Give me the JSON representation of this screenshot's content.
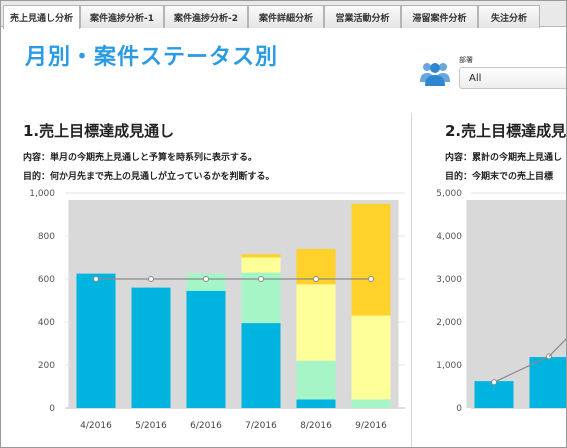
{
  "tabs": [
    {
      "label": "売上見通し分析",
      "active": true
    },
    {
      "label": "案件進捗分析-1",
      "active": false
    },
    {
      "label": "案件進捗分析-2",
      "active": false
    },
    {
      "label": "案件詳細分析",
      "active": false
    },
    {
      "label": "営業活動分析",
      "active": false
    },
    {
      "label": "滞留案件分析",
      "active": false
    },
    {
      "label": "失注分析",
      "active": false
    }
  ],
  "page": {
    "title": "月別・案件ステータス別"
  },
  "filter": {
    "label": "部署",
    "value": "All",
    "icon": "people-icon"
  },
  "panels": [
    {
      "title": "1.売上目標達成見通し",
      "content": "内容：単月の今期売上見通しと予算を時系列に表示する。",
      "purpose": "目的：何か月先まで売上の見通しが立っているかを判断する。"
    },
    {
      "title": "2.売上目標達成見通し",
      "content": "内容：累計の今期売上見通し",
      "purpose": "目的：今期末での売上目標"
    }
  ],
  "colors": {
    "tab_bg": "#e9e9e9",
    "title_blue": "#2b9be3",
    "budget_band": "#d9d9d9",
    "stage1": "#00b4e0",
    "stage2": "#a6f5c6",
    "stage3": "#ffff99",
    "stage4": "#ffd12a",
    "budget_line": "#8a8a8a"
  },
  "chart_data": [
    {
      "type": "bar",
      "stacked": true,
      "categories": [
        "4/2016",
        "5/2016",
        "6/2016",
        "7/2016",
        "8/2016",
        "9/2016"
      ],
      "ylim": [
        0,
        1000
      ],
      "yticks": [
        "0",
        "200",
        "400",
        "600",
        "800",
        "1,000"
      ],
      "grid": true,
      "budget": [
        600,
        600,
        600,
        600,
        600,
        600
      ],
      "series": [
        {
          "color": "#00b4e0",
          "values": [
            625,
            560,
            545,
            395,
            40,
            0
          ]
        },
        {
          "color": "#a6f5c6",
          "values": [
            0,
            0,
            80,
            235,
            180,
            40
          ]
        },
        {
          "color": "#ffff99",
          "values": [
            0,
            0,
            0,
            70,
            355,
            390
          ]
        },
        {
          "color": "#ffd12a",
          "values": [
            0,
            0,
            0,
            15,
            165,
            520
          ]
        }
      ]
    },
    {
      "type": "bar",
      "stacked": true,
      "categories": [
        "",
        ""
      ],
      "ylim": [
        0,
        5000
      ],
      "yticks": [
        "0",
        "1,000",
        "2,000",
        "3,000",
        "4,000",
        "5,000"
      ],
      "grid": true,
      "budget": [
        600,
        1200
      ],
      "series": [
        {
          "color": "#00b4e0",
          "values": [
            625,
            1185
          ]
        }
      ]
    }
  ]
}
